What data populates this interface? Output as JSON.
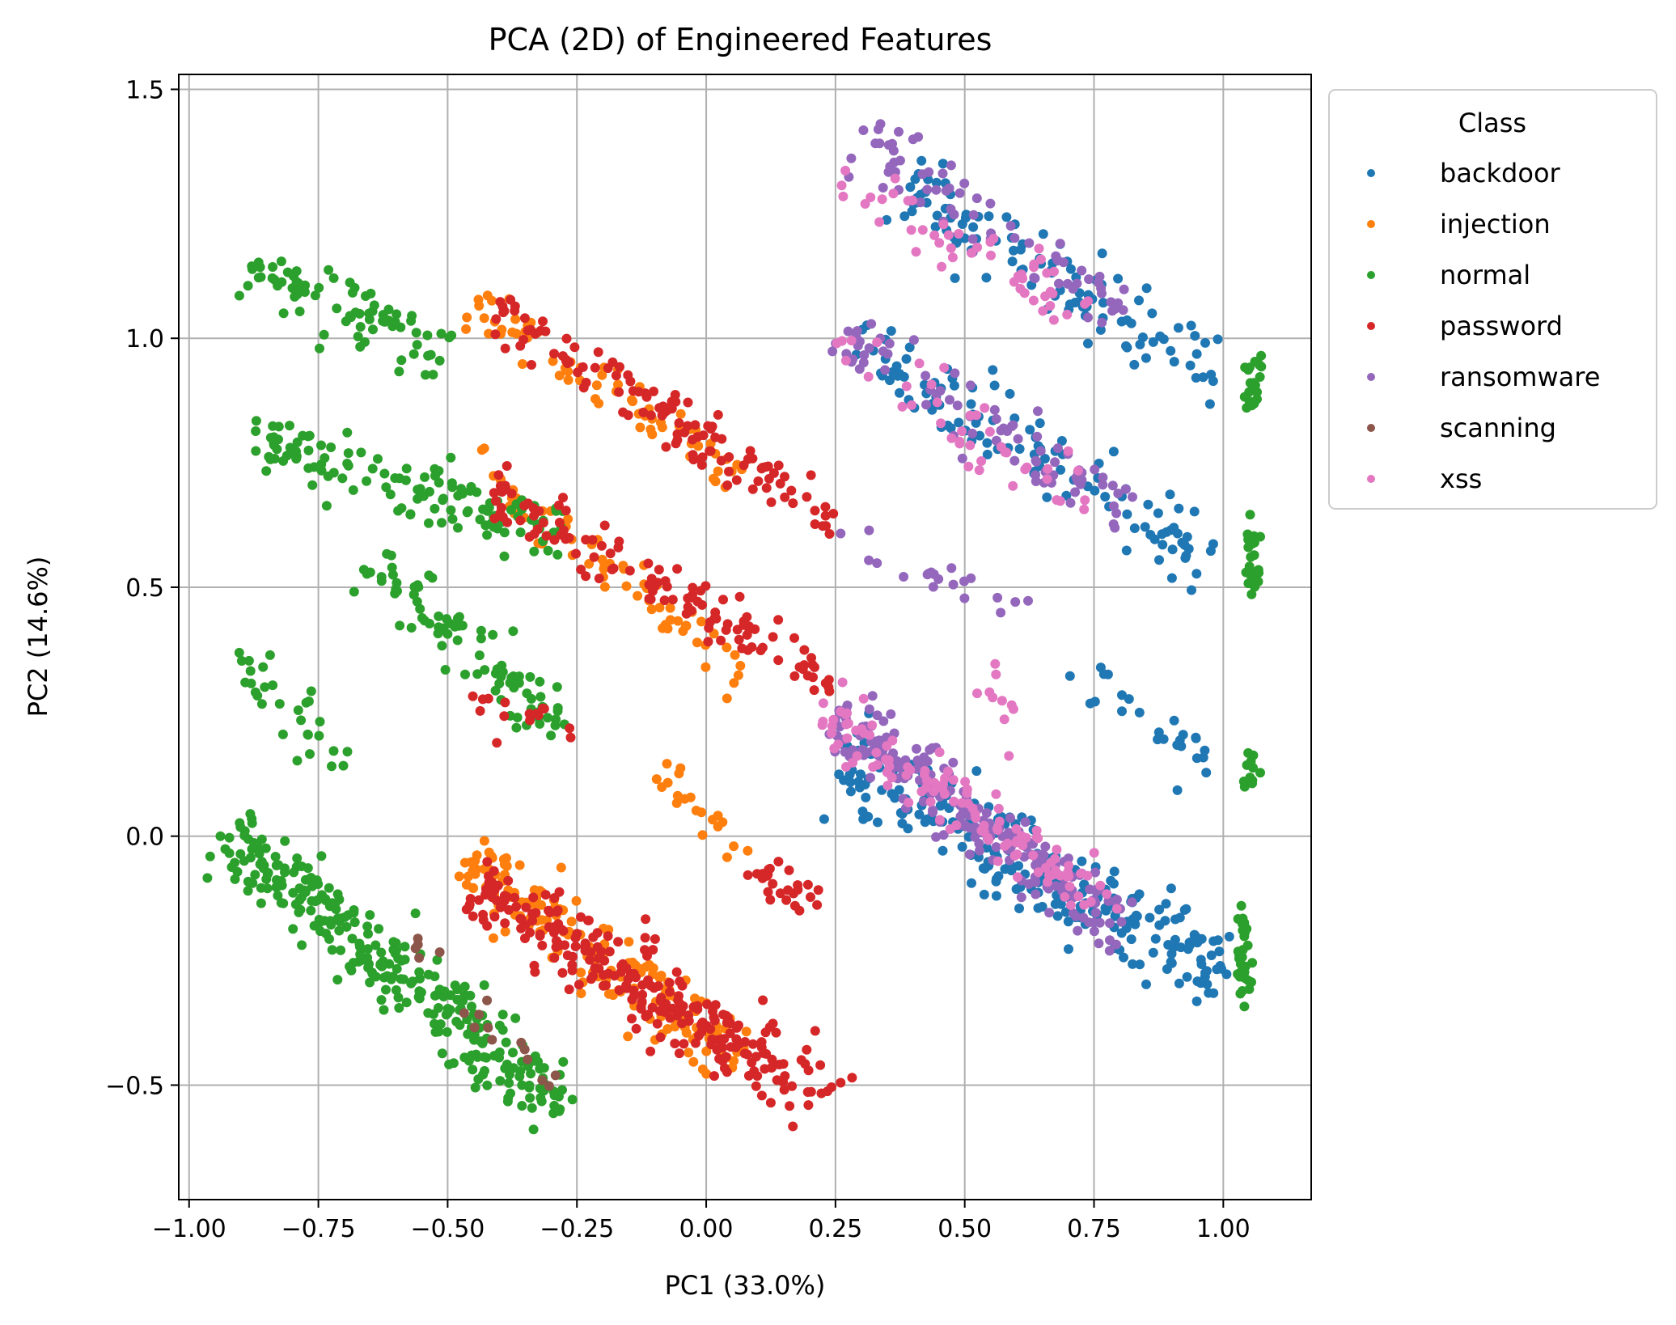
{
  "chart_data": {
    "type": "scatter",
    "title": "PCA (2D) of Engineered Features",
    "xlabel": "PC1 (33.0%)",
    "ylabel": "PC2 (14.6%)",
    "xlim": [
      -1.02,
      1.17
    ],
    "ylim": [
      -0.73,
      1.53
    ],
    "xticks": [
      -1.0,
      -0.75,
      -0.5,
      -0.25,
      0.0,
      0.25,
      0.5,
      0.75,
      1.0
    ],
    "xtick_labels": [
      "−1.00",
      "−0.75",
      "−0.50",
      "−0.25",
      "0.00",
      "0.25",
      "0.50",
      "0.75",
      "1.00"
    ],
    "yticks": [
      -0.5,
      0.0,
      0.5,
      1.0,
      1.5
    ],
    "ytick_labels": [
      "−0.5",
      "0.0",
      "0.5",
      "1.0",
      "1.5"
    ],
    "grid": true,
    "legend": {
      "title": "Class",
      "placement": "outside upper right"
    },
    "series": [
      {
        "name": "backdoor",
        "color": "#1f77b4",
        "clusters": [
          {
            "from": [
              0.26,
              0.16
            ],
            "to": [
              1.0,
              -0.27
            ],
            "spread": 0.07,
            "n": 260
          },
          {
            "from": [
              0.28,
              1.0
            ],
            "to": [
              0.98,
              0.55
            ],
            "spread": 0.06,
            "n": 110
          },
          {
            "from": [
              0.38,
              1.3
            ],
            "to": [
              1.0,
              0.92
            ],
            "spread": 0.06,
            "n": 110
          },
          {
            "from": [
              0.72,
              0.35
            ],
            "to": [
              0.98,
              0.15
            ],
            "spread": 0.06,
            "n": 25
          }
        ]
      },
      {
        "name": "injection",
        "color": "#ff7f0e",
        "clusters": [
          {
            "from": [
              -0.45,
              1.07
            ],
            "to": [
              0.08,
              0.72
            ],
            "spread": 0.04,
            "n": 70
          },
          {
            "from": [
              -0.45,
              0.75
            ],
            "to": [
              0.08,
              0.32
            ],
            "spread": 0.04,
            "n": 70
          },
          {
            "from": [
              -0.46,
              -0.05
            ],
            "to": [
              0.07,
              -0.45
            ],
            "spread": 0.06,
            "n": 180
          },
          {
            "from": [
              -0.1,
              0.15
            ],
            "to": [
              0.08,
              -0.05
            ],
            "spread": 0.03,
            "n": 20
          }
        ]
      },
      {
        "name": "normal",
        "color": "#2ca02c",
        "clusters": [
          {
            "from": [
              -0.92,
              0.0
            ],
            "to": [
              -0.28,
              -0.55
            ],
            "spread": 0.06,
            "n": 300
          },
          {
            "from": [
              -0.88,
              1.15
            ],
            "to": [
              -0.5,
              0.97
            ],
            "spread": 0.05,
            "n": 80
          },
          {
            "from": [
              -0.88,
              0.8
            ],
            "to": [
              -0.28,
              0.6
            ],
            "spread": 0.05,
            "n": 130
          },
          {
            "from": [
              -0.65,
              0.55
            ],
            "to": [
              -0.28,
              0.22
            ],
            "spread": 0.05,
            "n": 90
          },
          {
            "from": [
              -0.9,
              0.35
            ],
            "to": [
              -0.7,
              0.15
            ],
            "spread": 0.05,
            "n": 30
          },
          {
            "from": [
              1.06,
              0.95
            ],
            "to": [
              1.06,
              0.86
            ],
            "spread": 0.006,
            "n": 20
          },
          {
            "from": [
              1.055,
              0.63
            ],
            "to": [
              1.055,
              0.48
            ],
            "spread": 0.006,
            "n": 25
          },
          {
            "from": [
              1.05,
              0.16
            ],
            "to": [
              1.05,
              0.1
            ],
            "spread": 0.006,
            "n": 12
          },
          {
            "from": [
              1.04,
              -0.14
            ],
            "to": [
              1.04,
              -0.32
            ],
            "spread": 0.006,
            "n": 30
          }
        ]
      },
      {
        "name": "password",
        "color": "#d62728",
        "clusters": [
          {
            "from": [
              -0.42,
              1.06
            ],
            "to": [
              0.25,
              0.63
            ],
            "spread": 0.04,
            "n": 120
          },
          {
            "from": [
              -0.42,
              0.7
            ],
            "to": [
              0.25,
              0.3
            ],
            "spread": 0.04,
            "n": 120
          },
          {
            "from": [
              -0.45,
              -0.1
            ],
            "to": [
              0.24,
              -0.53
            ],
            "spread": 0.06,
            "n": 260
          },
          {
            "from": [
              0.05,
              -0.05
            ],
            "to": [
              0.23,
              -0.13
            ],
            "spread": 0.03,
            "n": 25
          },
          {
            "from": [
              -0.45,
              0.28
            ],
            "to": [
              -0.25,
              0.2
            ],
            "spread": 0.03,
            "n": 15
          }
        ]
      },
      {
        "name": "ransomware",
        "color": "#9467bd",
        "clusters": [
          {
            "from": [
              0.25,
              0.24
            ],
            "to": [
              0.8,
              -0.18
            ],
            "spread": 0.05,
            "n": 200
          },
          {
            "from": [
              0.26,
              1.02
            ],
            "to": [
              0.82,
              0.65
            ],
            "spread": 0.05,
            "n": 80
          },
          {
            "from": [
              0.3,
              1.4
            ],
            "to": [
              0.8,
              1.05
            ],
            "spread": 0.05,
            "n": 70
          },
          {
            "from": [
              0.25,
              0.6
            ],
            "to": [
              0.6,
              0.45
            ],
            "spread": 0.03,
            "n": 20
          }
        ]
      },
      {
        "name": "scanning",
        "color": "#8c564b",
        "clusters": [
          {
            "from": [
              -0.45,
              -0.35
            ],
            "to": [
              -0.28,
              -0.52
            ],
            "spread": 0.03,
            "n": 12
          },
          {
            "from": [
              -0.6,
              -0.15
            ],
            "to": [
              -0.5,
              -0.25
            ],
            "spread": 0.03,
            "n": 5
          }
        ]
      },
      {
        "name": "xss",
        "color": "#e377c2",
        "clusters": [
          {
            "from": [
              0.23,
              0.25
            ],
            "to": [
              0.8,
              -0.15
            ],
            "spread": 0.05,
            "n": 120
          },
          {
            "from": [
              0.23,
              1.33
            ],
            "to": [
              0.75,
              1.05
            ],
            "spread": 0.05,
            "n": 50
          },
          {
            "from": [
              0.22,
              1.0
            ],
            "to": [
              0.75,
              0.65
            ],
            "spread": 0.05,
            "n": 40
          },
          {
            "from": [
              0.5,
              0.35
            ],
            "to": [
              0.6,
              0.2
            ],
            "spread": 0.04,
            "n": 10
          }
        ]
      }
    ]
  }
}
